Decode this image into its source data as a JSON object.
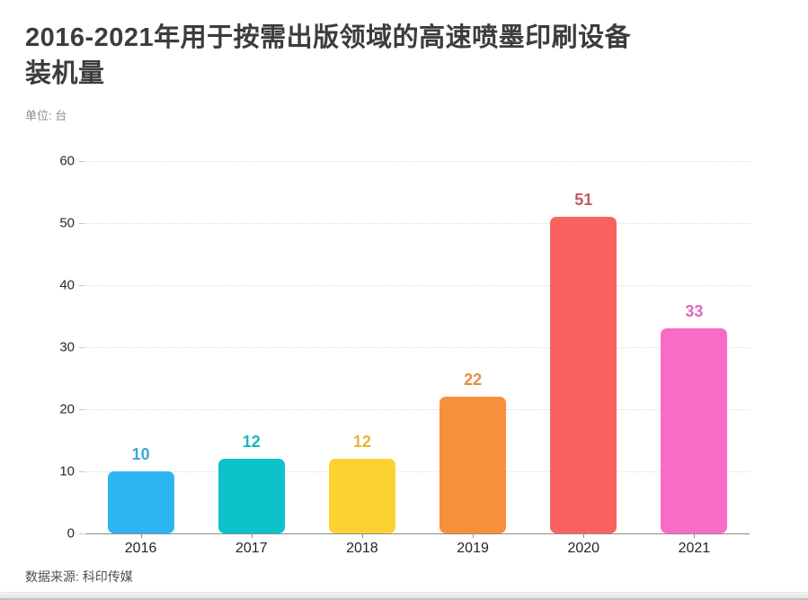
{
  "header": {
    "title_line1": "2016-2021年用于按需出版领域的高速喷墨印刷设备",
    "title_line2": "装机量",
    "unit_label": "单位: 台"
  },
  "chart_data": {
    "type": "bar",
    "title": "2016-2021年用于按需出版领域的高速喷墨印刷设备装机量",
    "xlabel": "",
    "ylabel": "单位: 台",
    "categories": [
      "2016",
      "2017",
      "2018",
      "2019",
      "2020",
      "2021"
    ],
    "values": [
      10,
      12,
      12,
      22,
      51,
      33
    ],
    "bar_colors": [
      "#2DB5F2",
      "#0CC3CB",
      "#FCD233",
      "#F7903B",
      "#FA625F",
      "#F96BC6"
    ],
    "value_label_colors": [
      "#3FA6D2",
      "#16B6BD",
      "#E6B43C",
      "#E58D42",
      "#C75A5E",
      "#DB6BBA"
    ],
    "y_ticks": [
      0,
      10,
      20,
      30,
      40,
      50,
      60
    ],
    "ylim": [
      0,
      60
    ],
    "grid": "horizontal dotted",
    "legend": "none"
  },
  "footer": {
    "source": "数据来源: 科印传媒"
  }
}
